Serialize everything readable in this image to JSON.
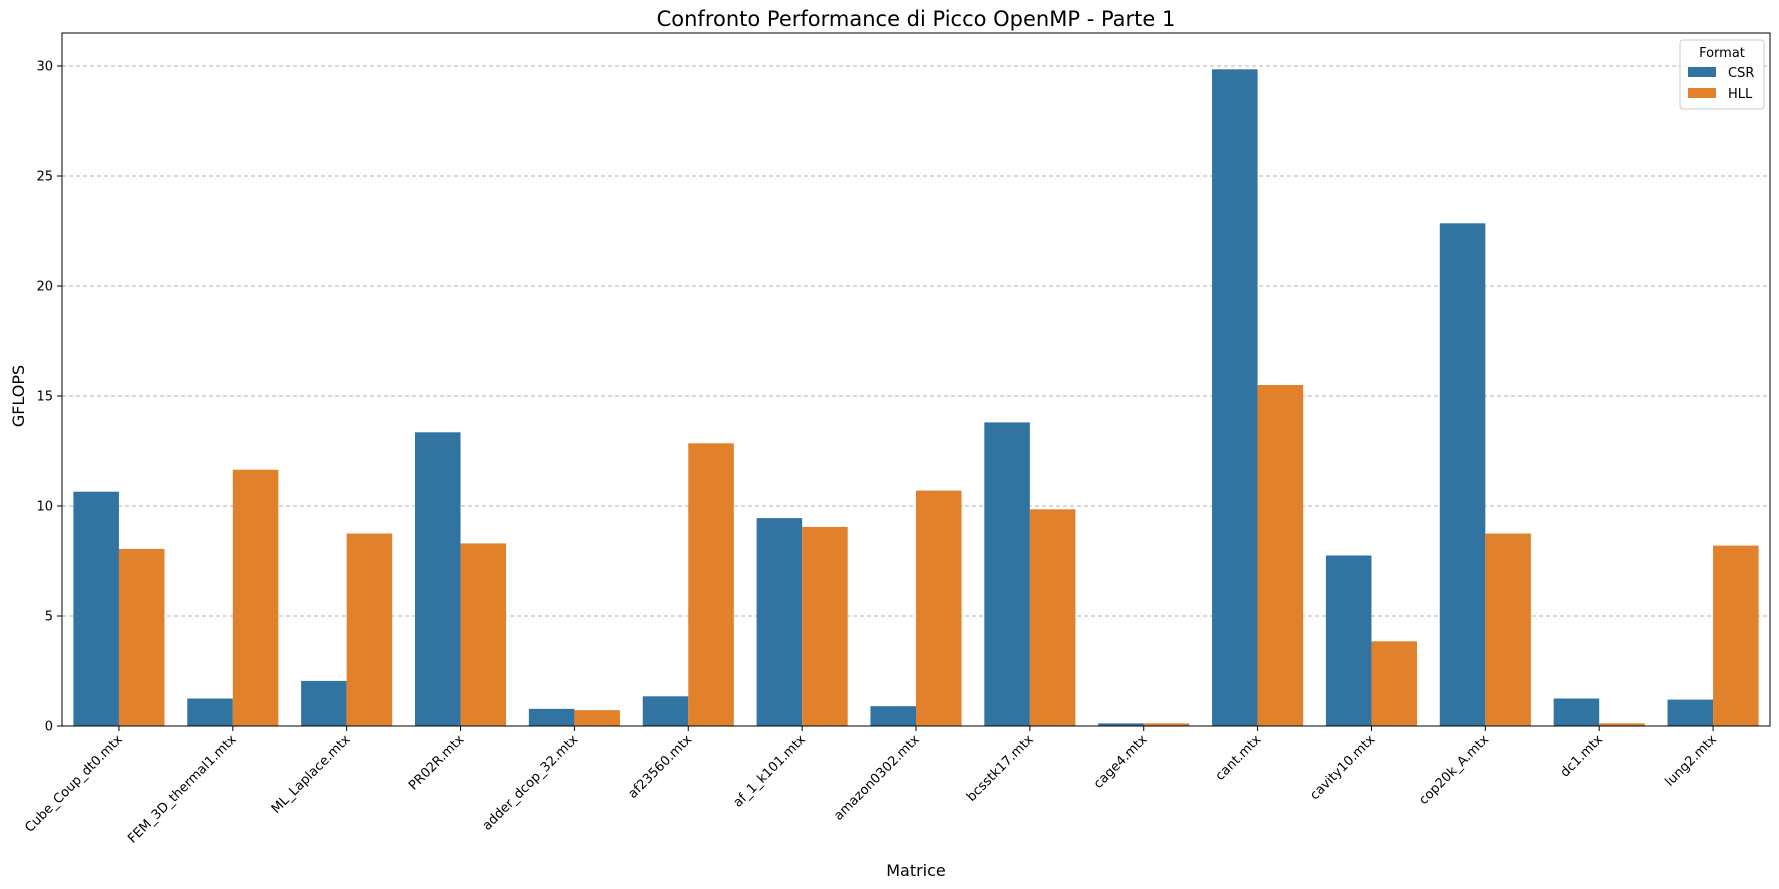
{
  "chart_data": {
    "type": "bar",
    "title": "Confronto Performance di Picco OpenMP - Parte 1",
    "xlabel": "Matrice",
    "ylabel": "GFLOPS",
    "ylim": [
      0,
      31.5
    ],
    "yticks": [
      0,
      5,
      10,
      15,
      20,
      25,
      30
    ],
    "grid": "y-dashed",
    "legend": {
      "title": "Format",
      "placement": "top-right"
    },
    "categories": [
      "Cube_Coup_dt0.mtx",
      "FEM_3D_thermal1.mtx",
      "ML_Laplace.mtx",
      "PR02R.mtx",
      "adder_dcop_32.mtx",
      "af23560.mtx",
      "af_1_k101.mtx",
      "amazon0302.mtx",
      "bcsstk17.mtx",
      "cage4.mtx",
      "cant.mtx",
      "cavity10.mtx",
      "cop20k_A.mtx",
      "dc1.mtx",
      "lung2.mtx"
    ],
    "series": [
      {
        "name": "CSR",
        "color": "#3274a1",
        "values": [
          10.65,
          1.25,
          2.05,
          13.35,
          0.78,
          1.35,
          9.45,
          0.9,
          13.8,
          0.12,
          29.85,
          7.75,
          22.85,
          1.25,
          1.2
        ]
      },
      {
        "name": "HLL",
        "color": "#e1812c",
        "values": [
          8.05,
          11.65,
          8.75,
          8.3,
          0.72,
          12.85,
          9.05,
          10.7,
          9.85,
          0.12,
          15.5,
          3.85,
          8.75,
          0.12,
          8.2
        ]
      }
    ]
  }
}
